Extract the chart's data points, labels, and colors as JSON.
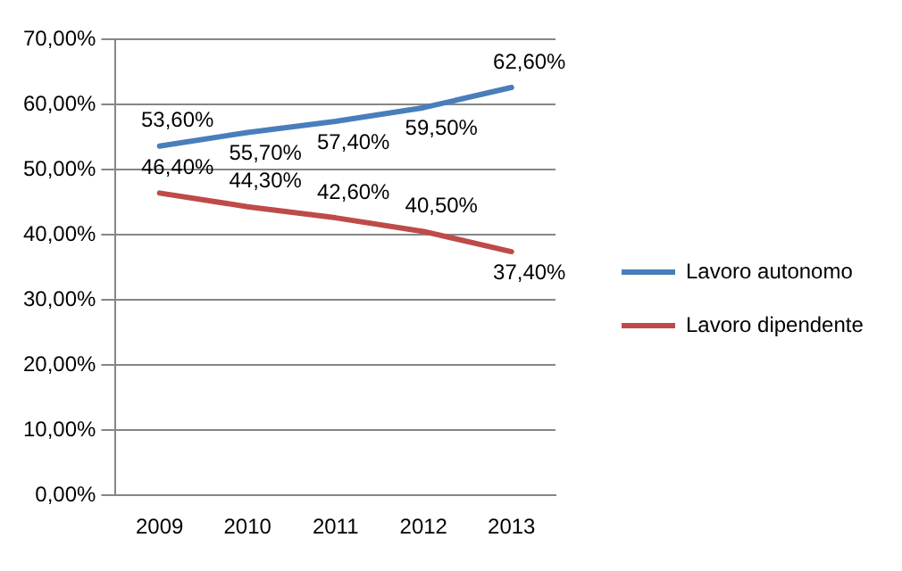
{
  "chart_data": {
    "type": "line",
    "categories": [
      "2009",
      "2010",
      "2011",
      "2012",
      "2013"
    ],
    "series": [
      {
        "name": "Lavoro autonomo",
        "color": "#4a7ebb",
        "values": [
          53.6,
          55.7,
          57.4,
          59.5,
          62.6
        ],
        "value_labels": [
          "53,60%",
          "55,70%",
          "57,40%",
          "59,50%",
          "62,60%"
        ]
      },
      {
        "name": "Lavoro dipendente",
        "color": "#be4b48",
        "values": [
          46.4,
          44.3,
          42.6,
          40.5,
          37.4
        ],
        "value_labels": [
          "46,40%",
          "44,30%",
          "42,60%",
          "40,50%",
          "37,40%"
        ]
      }
    ],
    "ylim": [
      0,
      70
    ],
    "yticks": [
      {
        "value": 0,
        "label": "0,00%"
      },
      {
        "value": 10,
        "label": "10,00%"
      },
      {
        "value": 20,
        "label": "20,00%"
      },
      {
        "value": 30,
        "label": "30,00%"
      },
      {
        "value": 40,
        "label": "40,00%"
      },
      {
        "value": 50,
        "label": "50,00%"
      },
      {
        "value": 60,
        "label": "60,00%"
      },
      {
        "value": 70,
        "label": "70,00%"
      }
    ],
    "grid": "y",
    "legend": "right",
    "marker": "none",
    "line_style": "solid"
  }
}
